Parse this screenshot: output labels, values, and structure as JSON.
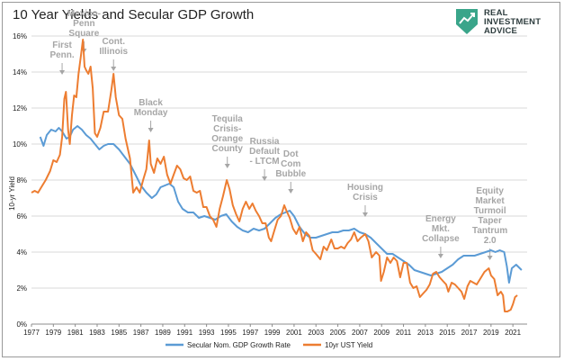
{
  "header": {
    "title": "10 Year Yields and Secular GDP Growth",
    "logo_lines": [
      "REAL",
      "INVESTMENT",
      "ADVICE"
    ],
    "logo_color": "#3aa58a"
  },
  "chart_data": {
    "type": "line",
    "title": "10 Year Yields and Secular GDP Growth",
    "ylabel": "10-yr Yield",
    "xlabel": "",
    "xlim": [
      1977,
      2022.3
    ],
    "ylim": [
      0,
      16
    ],
    "x_ticks": [
      "1977",
      "1979",
      "1981",
      "1983",
      "1985",
      "1987",
      "1989",
      "1991",
      "1993",
      "1995",
      "1997",
      "1999",
      "2001",
      "2003",
      "2005",
      "2007",
      "2009",
      "2011",
      "2013",
      "2015",
      "2017",
      "2019",
      "2021"
    ],
    "y_ticks": [
      "0%",
      "2%",
      "4%",
      "6%",
      "8%",
      "10%",
      "12%",
      "14%",
      "16%"
    ],
    "grid": "horizontal",
    "legend_position": "bottom",
    "series": [
      {
        "name": "Secular Nom. GDP Growth Rate",
        "color": "#5b9bd5",
        "points": [
          [
            1977.8,
            10.4
          ],
          [
            1978.1,
            9.9
          ],
          [
            1978.4,
            10.5
          ],
          [
            1978.8,
            10.8
          ],
          [
            1979.2,
            10.7
          ],
          [
            1979.5,
            10.9
          ],
          [
            1979.8,
            10.7
          ],
          [
            1980.2,
            10.3
          ],
          [
            1980.5,
            10.4
          ],
          [
            1980.8,
            10.8
          ],
          [
            1981.2,
            11.0
          ],
          [
            1981.6,
            10.8
          ],
          [
            1982.0,
            10.5
          ],
          [
            1982.4,
            10.3
          ],
          [
            1982.8,
            10.0
          ],
          [
            1983.2,
            9.7
          ],
          [
            1983.6,
            9.9
          ],
          [
            1984.0,
            10.0
          ],
          [
            1984.5,
            10.0
          ],
          [
            1985.0,
            9.7
          ],
          [
            1985.5,
            9.3
          ],
          [
            1986.0,
            8.9
          ],
          [
            1986.5,
            8.3
          ],
          [
            1987.0,
            7.7
          ],
          [
            1987.5,
            7.3
          ],
          [
            1988.0,
            7.0
          ],
          [
            1988.4,
            7.2
          ],
          [
            1988.8,
            7.6
          ],
          [
            1989.2,
            7.7
          ],
          [
            1989.6,
            7.8
          ],
          [
            1990.0,
            7.6
          ],
          [
            1990.4,
            6.8
          ],
          [
            1990.8,
            6.4
          ],
          [
            1991.3,
            6.2
          ],
          [
            1991.8,
            6.2
          ],
          [
            1992.3,
            5.9
          ],
          [
            1992.8,
            6.0
          ],
          [
            1993.3,
            5.9
          ],
          [
            1993.8,
            5.8
          ],
          [
            1994.3,
            6.0
          ],
          [
            1994.8,
            6.1
          ],
          [
            1995.3,
            5.7
          ],
          [
            1995.8,
            5.4
          ],
          [
            1996.3,
            5.2
          ],
          [
            1996.8,
            5.1
          ],
          [
            1997.3,
            5.3
          ],
          [
            1997.8,
            5.2
          ],
          [
            1998.3,
            5.3
          ],
          [
            1998.8,
            5.6
          ],
          [
            1999.3,
            5.9
          ],
          [
            1999.8,
            6.1
          ],
          [
            2000.2,
            6.2
          ],
          [
            2000.6,
            6.3
          ],
          [
            2001.0,
            6.0
          ],
          [
            2001.5,
            5.4
          ],
          [
            2002.0,
            5.0
          ],
          [
            2002.5,
            4.8
          ],
          [
            2003.0,
            4.8
          ],
          [
            2003.5,
            4.9
          ],
          [
            2004.0,
            5.0
          ],
          [
            2004.5,
            5.1
          ],
          [
            2005.0,
            5.1
          ],
          [
            2005.5,
            5.2
          ],
          [
            2006.0,
            5.2
          ],
          [
            2006.5,
            5.3
          ],
          [
            2007.0,
            5.1
          ],
          [
            2007.5,
            5.0
          ],
          [
            2008.0,
            4.8
          ],
          [
            2008.5,
            4.5
          ],
          [
            2009.0,
            4.2
          ],
          [
            2009.5,
            3.9
          ],
          [
            2010.0,
            3.9
          ],
          [
            2010.5,
            3.7
          ],
          [
            2011.0,
            3.5
          ],
          [
            2011.5,
            3.3
          ],
          [
            2012.0,
            3.0
          ],
          [
            2012.5,
            2.9
          ],
          [
            2013.0,
            2.8
          ],
          [
            2013.5,
            2.7
          ],
          [
            2014.0,
            2.8
          ],
          [
            2014.5,
            2.9
          ],
          [
            2015.0,
            3.1
          ],
          [
            2015.5,
            3.3
          ],
          [
            2016.0,
            3.6
          ],
          [
            2016.5,
            3.8
          ],
          [
            2017.0,
            3.8
          ],
          [
            2017.5,
            3.8
          ],
          [
            2018.0,
            3.9
          ],
          [
            2018.5,
            4.0
          ],
          [
            2019.0,
            4.1
          ],
          [
            2019.4,
            4.0
          ],
          [
            2019.8,
            4.1
          ],
          [
            2020.2,
            4.0
          ],
          [
            2020.45,
            3.2
          ],
          [
            2020.65,
            2.3
          ],
          [
            2020.9,
            3.1
          ],
          [
            2021.3,
            3.3
          ],
          [
            2021.8,
            3.0
          ]
        ]
      },
      {
        "name": "10yr UST Yield",
        "color": "#ed7d31",
        "points": [
          [
            1977.0,
            7.3
          ],
          [
            1977.3,
            7.4
          ],
          [
            1977.6,
            7.3
          ],
          [
            1977.9,
            7.6
          ],
          [
            1978.3,
            8.0
          ],
          [
            1978.7,
            8.5
          ],
          [
            1979.0,
            9.1
          ],
          [
            1979.3,
            9.0
          ],
          [
            1979.6,
            9.4
          ],
          [
            1979.8,
            10.4
          ],
          [
            1980.0,
            12.5
          ],
          [
            1980.15,
            12.9
          ],
          [
            1980.35,
            10.8
          ],
          [
            1980.5,
            10.0
          ],
          [
            1980.7,
            11.6
          ],
          [
            1980.9,
            12.7
          ],
          [
            1981.1,
            12.6
          ],
          [
            1981.3,
            13.9
          ],
          [
            1981.5,
            14.8
          ],
          [
            1981.7,
            15.8
          ],
          [
            1981.85,
            14.3
          ],
          [
            1982.0,
            14.1
          ],
          [
            1982.2,
            13.9
          ],
          [
            1982.4,
            14.3
          ],
          [
            1982.6,
            13.1
          ],
          [
            1982.8,
            10.6
          ],
          [
            1983.0,
            10.4
          ],
          [
            1983.3,
            10.9
          ],
          [
            1983.6,
            11.8
          ],
          [
            1984.0,
            11.8
          ],
          [
            1984.3,
            13.0
          ],
          [
            1984.5,
            13.9
          ],
          [
            1984.7,
            12.6
          ],
          [
            1985.0,
            11.6
          ],
          [
            1985.3,
            11.4
          ],
          [
            1985.6,
            10.3
          ],
          [
            1986.0,
            9.2
          ],
          [
            1986.3,
            7.3
          ],
          [
            1986.6,
            7.6
          ],
          [
            1986.9,
            7.3
          ],
          [
            1987.2,
            8.0
          ],
          [
            1987.5,
            8.6
          ],
          [
            1987.75,
            10.2
          ],
          [
            1987.9,
            8.9
          ],
          [
            1988.2,
            8.4
          ],
          [
            1988.5,
            9.2
          ],
          [
            1988.8,
            8.9
          ],
          [
            1989.1,
            9.3
          ],
          [
            1989.4,
            8.3
          ],
          [
            1989.7,
            7.8
          ],
          [
            1990.0,
            8.3
          ],
          [
            1990.3,
            8.8
          ],
          [
            1990.6,
            8.6
          ],
          [
            1990.9,
            8.1
          ],
          [
            1991.2,
            8.0
          ],
          [
            1991.5,
            8.2
          ],
          [
            1991.8,
            7.4
          ],
          [
            1992.1,
            7.3
          ],
          [
            1992.4,
            7.4
          ],
          [
            1992.7,
            6.5
          ],
          [
            1993.0,
            6.5
          ],
          [
            1993.3,
            6.0
          ],
          [
            1993.6,
            5.8
          ],
          [
            1993.9,
            5.4
          ],
          [
            1994.2,
            6.4
          ],
          [
            1994.5,
            7.1
          ],
          [
            1994.85,
            8.0
          ],
          [
            1995.1,
            7.5
          ],
          [
            1995.4,
            6.6
          ],
          [
            1995.7,
            6.1
          ],
          [
            1996.0,
            5.7
          ],
          [
            1996.3,
            6.4
          ],
          [
            1996.6,
            6.8
          ],
          [
            1996.9,
            6.4
          ],
          [
            1997.2,
            6.7
          ],
          [
            1997.5,
            6.3
          ],
          [
            1997.8,
            6.0
          ],
          [
            1998.1,
            5.6
          ],
          [
            1998.4,
            5.6
          ],
          [
            1998.7,
            4.8
          ],
          [
            1998.9,
            4.6
          ],
          [
            1999.2,
            5.2
          ],
          [
            1999.5,
            5.8
          ],
          [
            1999.8,
            6.0
          ],
          [
            2000.1,
            6.6
          ],
          [
            2000.3,
            6.3
          ],
          [
            2000.6,
            5.9
          ],
          [
            2000.9,
            5.3
          ],
          [
            2001.2,
            5.0
          ],
          [
            2001.5,
            5.4
          ],
          [
            2001.8,
            4.6
          ],
          [
            2002.1,
            5.1
          ],
          [
            2002.4,
            4.9
          ],
          [
            2002.7,
            4.1
          ],
          [
            2003.0,
            3.9
          ],
          [
            2003.4,
            3.6
          ],
          [
            2003.7,
            4.3
          ],
          [
            2004.0,
            4.1
          ],
          [
            2004.4,
            4.7
          ],
          [
            2004.7,
            4.2
          ],
          [
            2005.0,
            4.2
          ],
          [
            2005.3,
            4.3
          ],
          [
            2005.6,
            4.2
          ],
          [
            2005.9,
            4.5
          ],
          [
            2006.2,
            4.7
          ],
          [
            2006.5,
            5.1
          ],
          [
            2006.8,
            4.6
          ],
          [
            2007.1,
            4.8
          ],
          [
            2007.5,
            5.0
          ],
          [
            2007.8,
            4.6
          ],
          [
            2008.1,
            3.7
          ],
          [
            2008.5,
            4.0
          ],
          [
            2008.8,
            3.8
          ],
          [
            2008.95,
            2.4
          ],
          [
            2009.2,
            2.9
          ],
          [
            2009.5,
            3.7
          ],
          [
            2009.8,
            3.4
          ],
          [
            2010.1,
            3.7
          ],
          [
            2010.4,
            3.5
          ],
          [
            2010.7,
            2.6
          ],
          [
            2011.0,
            3.4
          ],
          [
            2011.3,
            3.4
          ],
          [
            2011.6,
            2.3
          ],
          [
            2011.9,
            2.0
          ],
          [
            2012.2,
            2.1
          ],
          [
            2012.5,
            1.5
          ],
          [
            2012.8,
            1.7
          ],
          [
            2013.1,
            1.9
          ],
          [
            2013.4,
            2.2
          ],
          [
            2013.7,
            2.8
          ],
          [
            2014.0,
            2.9
          ],
          [
            2014.3,
            2.6
          ],
          [
            2014.6,
            2.4
          ],
          [
            2014.9,
            2.2
          ],
          [
            2015.1,
            1.8
          ],
          [
            2015.4,
            2.3
          ],
          [
            2015.7,
            2.2
          ],
          [
            2016.0,
            2.0
          ],
          [
            2016.3,
            1.8
          ],
          [
            2016.55,
            1.4
          ],
          [
            2016.85,
            2.1
          ],
          [
            2017.1,
            2.4
          ],
          [
            2017.4,
            2.3
          ],
          [
            2017.7,
            2.2
          ],
          [
            2018.0,
            2.5
          ],
          [
            2018.4,
            2.9
          ],
          [
            2018.8,
            3.1
          ],
          [
            2019.0,
            2.7
          ],
          [
            2019.3,
            2.5
          ],
          [
            2019.6,
            1.6
          ],
          [
            2019.9,
            1.8
          ],
          [
            2020.1,
            1.6
          ],
          [
            2020.25,
            0.7
          ],
          [
            2020.5,
            0.7
          ],
          [
            2020.8,
            0.8
          ],
          [
            2021.0,
            1.1
          ],
          [
            2021.2,
            1.5
          ],
          [
            2021.4,
            1.6
          ]
        ]
      }
    ],
    "annotations": [
      {
        "lines": [
          "First",
          "Penn."
        ],
        "x": 1979.8,
        "y": 13.8
      },
      {
        "lines": [
          "Mexico-",
          "Penn",
          "Square"
        ],
        "x": 1981.8,
        "y": 15.0
      },
      {
        "lines": [
          "Cont.",
          "Illinois"
        ],
        "x": 1984.5,
        "y": 14.0
      },
      {
        "lines": [
          "Black",
          "Monday"
        ],
        "x": 1987.9,
        "y": 10.6
      },
      {
        "lines": [
          "Tequila",
          "Crisis-",
          "Orange",
          "County"
        ],
        "x": 1994.9,
        "y": 8.6
      },
      {
        "lines": [
          "Russia",
          "Default",
          "- LTCM"
        ],
        "x": 1998.3,
        "y": 7.9
      },
      {
        "lines": [
          "Dot",
          "Com",
          "Bubble"
        ],
        "x": 2000.7,
        "y": 7.2
      },
      {
        "lines": [
          "Housing",
          "Crisis"
        ],
        "x": 2007.5,
        "y": 5.9
      },
      {
        "lines": [
          "Energy",
          "Mkt.",
          "Collapse"
        ],
        "x": 2014.4,
        "y": 3.6
      },
      {
        "lines": [
          "Equity",
          "Market",
          "Turmoil",
          "Taper",
          "Tantrum",
          "2.0"
        ],
        "x": 2018.9,
        "y": 3.5
      }
    ]
  }
}
